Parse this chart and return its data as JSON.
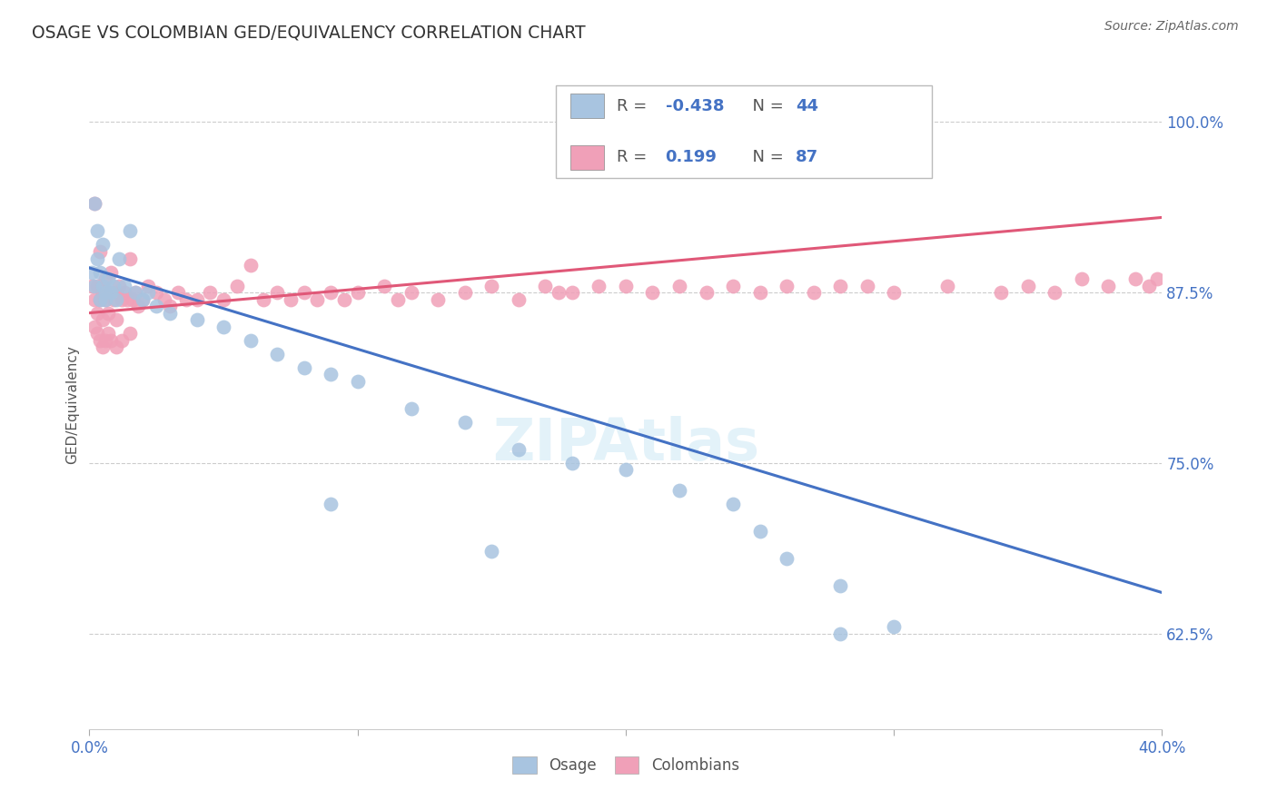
{
  "title": "OSAGE VS COLOMBIAN GED/EQUIVALENCY CORRELATION CHART",
  "source": "Source: ZipAtlas.com",
  "ylabel": "GED/Equivalency",
  "xlim": [
    0.0,
    0.4
  ],
  "ylim": [
    0.555,
    1.03
  ],
  "xticks": [
    0.0,
    0.1,
    0.2,
    0.3,
    0.4
  ],
  "xtick_labels": [
    "0.0%",
    "",
    "",
    "",
    "40.0%"
  ],
  "yticks": [
    0.625,
    0.75,
    0.875,
    1.0
  ],
  "ytick_labels": [
    "62.5%",
    "75.0%",
    "87.5%",
    "100.0%"
  ],
  "osage_color": "#a8c4e0",
  "colombian_color": "#f0a0b8",
  "osage_line_color": "#4472c4",
  "colombian_line_color": "#e05878",
  "background_color": "#ffffff",
  "osage_x": [
    0.001,
    0.002,
    0.002,
    0.003,
    0.003,
    0.004,
    0.004,
    0.005,
    0.005,
    0.006,
    0.006,
    0.007,
    0.008,
    0.009,
    0.01,
    0.011,
    0.013,
    0.015,
    0.017,
    0.02,
    0.022,
    0.025,
    0.03,
    0.04,
    0.05,
    0.06,
    0.07,
    0.08,
    0.09,
    0.1,
    0.12,
    0.14,
    0.16,
    0.18,
    0.2,
    0.22,
    0.24,
    0.25,
    0.26,
    0.28,
    0.09,
    0.15,
    0.3,
    0.28
  ],
  "osage_y": [
    0.89,
    0.94,
    0.88,
    0.9,
    0.92,
    0.89,
    0.87,
    0.88,
    0.91,
    0.875,
    0.87,
    0.885,
    0.875,
    0.88,
    0.87,
    0.9,
    0.88,
    0.92,
    0.875,
    0.87,
    0.875,
    0.865,
    0.86,
    0.855,
    0.85,
    0.84,
    0.83,
    0.82,
    0.815,
    0.81,
    0.79,
    0.78,
    0.76,
    0.75,
    0.745,
    0.73,
    0.72,
    0.7,
    0.68,
    0.66,
    0.72,
    0.685,
    0.63,
    0.625
  ],
  "colombian_x": [
    0.001,
    0.002,
    0.002,
    0.003,
    0.003,
    0.004,
    0.004,
    0.005,
    0.005,
    0.006,
    0.006,
    0.007,
    0.007,
    0.008,
    0.008,
    0.009,
    0.01,
    0.01,
    0.011,
    0.012,
    0.013,
    0.014,
    0.015,
    0.016,
    0.017,
    0.018,
    0.02,
    0.022,
    0.025,
    0.028,
    0.03,
    0.033,
    0.036,
    0.04,
    0.045,
    0.05,
    0.055,
    0.06,
    0.065,
    0.07,
    0.075,
    0.08,
    0.085,
    0.09,
    0.095,
    0.1,
    0.11,
    0.115,
    0.12,
    0.13,
    0.14,
    0.15,
    0.16,
    0.17,
    0.175,
    0.18,
    0.19,
    0.2,
    0.21,
    0.22,
    0.23,
    0.24,
    0.25,
    0.26,
    0.27,
    0.28,
    0.29,
    0.3,
    0.32,
    0.34,
    0.35,
    0.36,
    0.37,
    0.38,
    0.39,
    0.395,
    0.398,
    0.002,
    0.003,
    0.004,
    0.005,
    0.006,
    0.007,
    0.008,
    0.01,
    0.012,
    0.015
  ],
  "colombian_y": [
    0.88,
    0.94,
    0.87,
    0.88,
    0.86,
    0.905,
    0.87,
    0.875,
    0.855,
    0.87,
    0.885,
    0.875,
    0.86,
    0.875,
    0.89,
    0.87,
    0.875,
    0.855,
    0.88,
    0.87,
    0.875,
    0.87,
    0.9,
    0.87,
    0.875,
    0.865,
    0.87,
    0.88,
    0.875,
    0.87,
    0.865,
    0.875,
    0.87,
    0.87,
    0.875,
    0.87,
    0.88,
    0.895,
    0.87,
    0.875,
    0.87,
    0.875,
    0.87,
    0.875,
    0.87,
    0.875,
    0.88,
    0.87,
    0.875,
    0.87,
    0.875,
    0.88,
    0.87,
    0.88,
    0.875,
    0.875,
    0.88,
    0.88,
    0.875,
    0.88,
    0.875,
    0.88,
    0.875,
    0.88,
    0.875,
    0.88,
    0.88,
    0.875,
    0.88,
    0.875,
    0.88,
    0.875,
    0.885,
    0.88,
    0.885,
    0.88,
    0.885,
    0.85,
    0.845,
    0.84,
    0.835,
    0.84,
    0.845,
    0.84,
    0.835,
    0.84,
    0.845
  ]
}
